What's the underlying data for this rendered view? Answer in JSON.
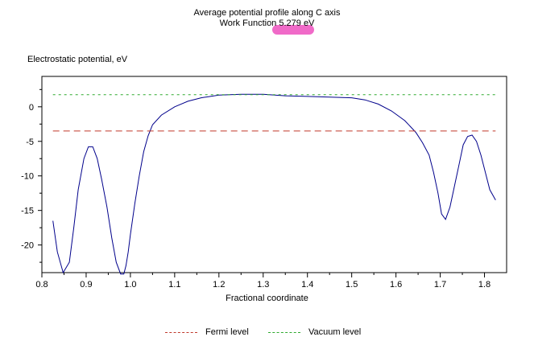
{
  "title_line1": "Average potential profile along C axis",
  "title_line2": "Work Function 5.279 eV",
  "highlight_color": "#f06ac8",
  "chart_data": {
    "type": "line",
    "title": "Average potential profile along C axis",
    "subtitle": "Work Function 5.279 eV",
    "xlabel": "Fractional coordinate",
    "ylabel": "Electrostatic potential, eV",
    "xlim": [
      0.8,
      1.85
    ],
    "ylim": [
      -24,
      4.4
    ],
    "xticks": [
      0.8,
      0.9,
      1.0,
      1.1,
      1.2,
      1.3,
      1.4,
      1.5,
      1.6,
      1.7,
      1.8
    ],
    "yticks": [
      0,
      -5,
      -10,
      -15,
      -20
    ],
    "grid": false,
    "legend": "bottom",
    "series": [
      {
        "name": "",
        "color": "#00008b",
        "style": "solid",
        "x": [
          0.825,
          0.835,
          0.848,
          0.862,
          0.872,
          0.882,
          0.895,
          0.905,
          0.915,
          0.925,
          0.935,
          0.947,
          0.958,
          0.968,
          0.978,
          0.985,
          0.99,
          0.995,
          1.0,
          1.01,
          1.02,
          1.03,
          1.04,
          1.05,
          1.07,
          1.1,
          1.13,
          1.16,
          1.2,
          1.25,
          1.3,
          1.35,
          1.4,
          1.45,
          1.5,
          1.53,
          1.56,
          1.59,
          1.62,
          1.645,
          1.66,
          1.675,
          1.685,
          1.695,
          1.703,
          1.712,
          1.722,
          1.732,
          1.742,
          1.752,
          1.762,
          1.772,
          1.782,
          1.792,
          1.802,
          1.812,
          1.825
        ],
        "y": [
          -16.5,
          -21.0,
          -24.0,
          -22.5,
          -17.5,
          -12.0,
          -7.5,
          -5.8,
          -5.8,
          -7.5,
          -10.5,
          -14.5,
          -19.0,
          -22.5,
          -24.2,
          -24.2,
          -23.0,
          -21.0,
          -18.5,
          -14.0,
          -10.0,
          -6.5,
          -4.2,
          -2.6,
          -1.2,
          0.0,
          0.8,
          1.3,
          1.7,
          1.8,
          1.8,
          1.6,
          1.5,
          1.4,
          1.3,
          1.0,
          0.4,
          -0.6,
          -2.0,
          -3.7,
          -5.2,
          -7.0,
          -9.5,
          -12.5,
          -15.5,
          -16.3,
          -14.5,
          -11.5,
          -8.5,
          -5.5,
          -4.3,
          -4.1,
          -5.0,
          -7.0,
          -9.5,
          -12.0,
          -13.5
        ]
      },
      {
        "name": "Fermi level",
        "color": "#c0392b",
        "style": "dashed",
        "x": [
          0.825,
          1.825
        ],
        "y": [
          -3.5,
          -3.5
        ]
      },
      {
        "name": "Vacuum level",
        "color": "#2eaa2e",
        "style": "dashed",
        "x": [
          0.825,
          1.825
        ],
        "y": [
          1.75,
          1.75
        ]
      }
    ]
  }
}
